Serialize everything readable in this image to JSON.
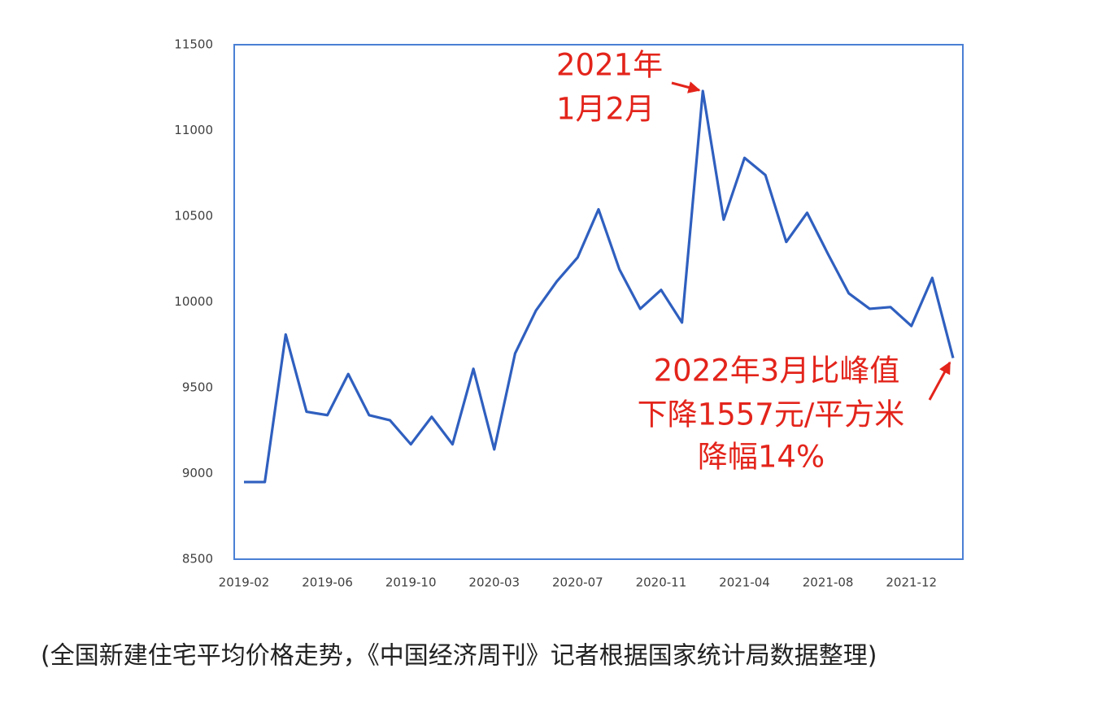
{
  "chart_data": {
    "type": "line",
    "categories": [
      "2019-02",
      null,
      null,
      null,
      "2019-06",
      null,
      null,
      null,
      "2019-10",
      null,
      null,
      null,
      "2020-03",
      null,
      null,
      null,
      "2020-07",
      null,
      null,
      null,
      "2020-11",
      null,
      null,
      null,
      "2021-04",
      null,
      null,
      null,
      "2021-08",
      null,
      null,
      null,
      "2021-12",
      null,
      null
    ],
    "series": [
      {
        "color": "#2f5fbf",
        "values": [
          8950,
          8950,
          9810,
          9360,
          9340,
          9580,
          9340,
          9310,
          9170,
          9330,
          9170,
          9610,
          9140,
          9700,
          9950,
          10120,
          10260,
          10540,
          10190,
          9960,
          10070,
          9880,
          11230,
          10480,
          10840,
          10740,
          10350,
          10520,
          10280,
          10050,
          9960,
          9970,
          9860,
          10140,
          9673
        ]
      }
    ],
    "ylim": [
      8500,
      11500
    ],
    "yticks": [
      8500,
      9000,
      9500,
      10000,
      10500,
      11000,
      11500
    ],
    "annotations": [
      [
        "2021年",
        "1月2月"
      ],
      [
        "2022年3月比峰值",
        "下降1557元/平方米",
        "降幅14%"
      ]
    ],
    "caption": "(全国新建住宅平均价格走势，《中国经济周刊》记者根据国家统计局数据整理)"
  }
}
